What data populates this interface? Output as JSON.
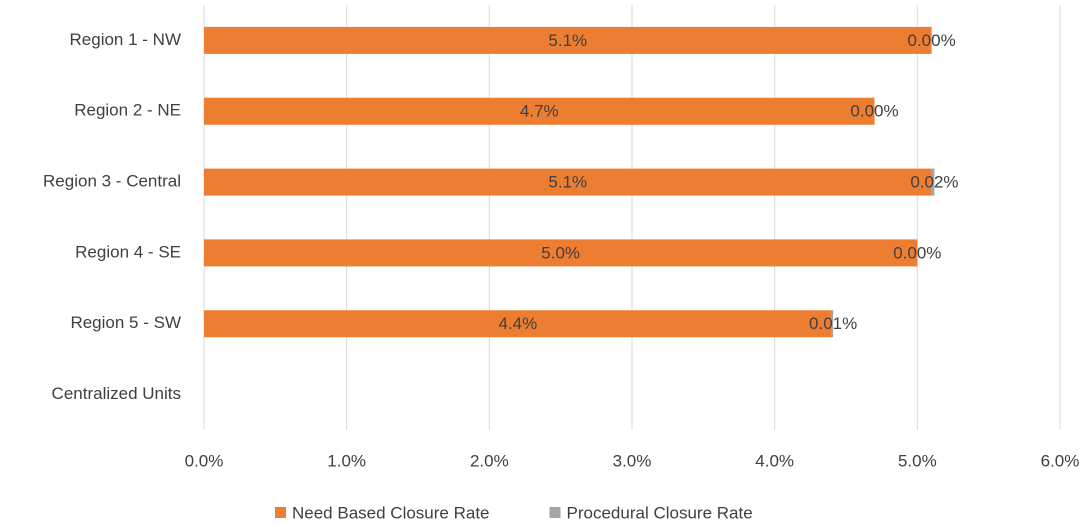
{
  "chart_data": {
    "type": "stacked_barh",
    "categories": [
      "Region 1 - NW",
      "Region 2 - NE",
      "Region 3 - Central",
      "Region 4 - SE",
      "Region 5 - SW",
      "Centralized Units"
    ],
    "series": [
      {
        "name": "Need Based Closure Rate",
        "color": "#ed7d31",
        "values": [
          5.1,
          4.7,
          5.1,
          5.0,
          4.4,
          null
        ],
        "value_labels": [
          "5.1%",
          "4.7%",
          "5.1%",
          "5.0%",
          "4.4%",
          null
        ]
      },
      {
        "name": "Procedural Closure Rate",
        "color": "#a5a5a5",
        "values": [
          0.0,
          0.0,
          0.02,
          0.0,
          0.01,
          null
        ],
        "value_labels": [
          "0.00%",
          "0.00%",
          "0.02%",
          "0.00%",
          "0.01%",
          null
        ]
      }
    ],
    "xlim": [
      0,
      6
    ],
    "xticks": [
      {
        "value": 0,
        "label": "0.0%"
      },
      {
        "value": 1,
        "label": "1.0%"
      },
      {
        "value": 2,
        "label": "2.0%"
      },
      {
        "value": 3,
        "label": "3.0%"
      },
      {
        "value": 4,
        "label": "4.0%"
      },
      {
        "value": 5,
        "label": "5.0%"
      },
      {
        "value": 6,
        "label": "6.0%"
      }
    ],
    "grid": true,
    "legend": "bottom"
  }
}
